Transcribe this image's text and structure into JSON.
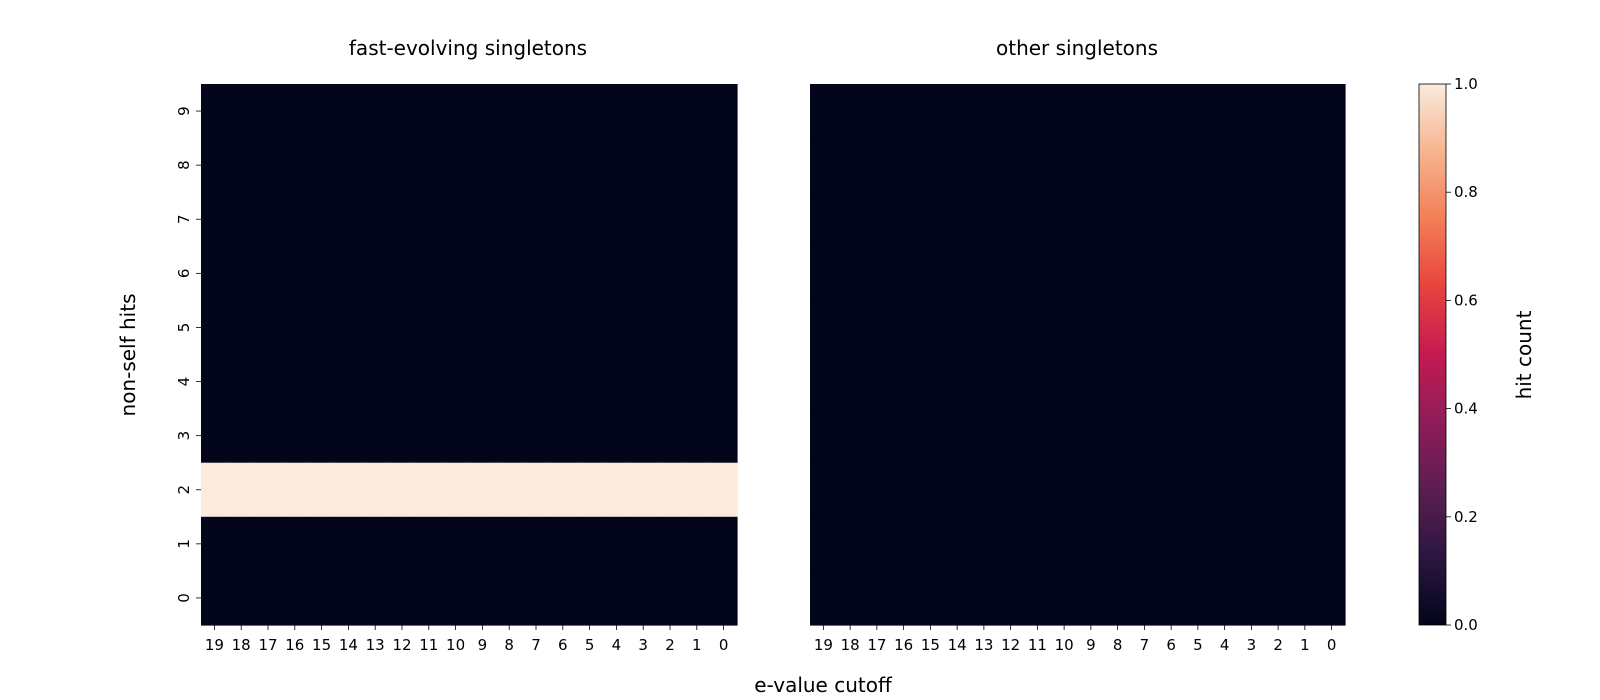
{
  "chart_data": {
    "type": "heatmap",
    "panels": [
      {
        "title": "fast-evolving singletons",
        "x_categories": [
          "19",
          "18",
          "17",
          "16",
          "15",
          "14",
          "13",
          "12",
          "11",
          "10",
          "9",
          "8",
          "7",
          "6",
          "5",
          "4",
          "3",
          "2",
          "1",
          "0"
        ],
        "y_categories": [
          "9",
          "8",
          "7",
          "6",
          "5",
          "4",
          "3",
          "2",
          "1",
          "0"
        ],
        "values": [
          [
            0,
            0,
            0,
            0,
            0,
            0,
            0,
            0,
            0,
            0,
            0,
            0,
            0,
            0,
            0,
            0,
            0,
            0,
            0,
            0
          ],
          [
            0,
            0,
            0,
            0,
            0,
            0,
            0,
            0,
            0,
            0,
            0,
            0,
            0,
            0,
            0,
            0,
            0,
            0,
            0,
            0
          ],
          [
            0,
            0,
            0,
            0,
            0,
            0,
            0,
            0,
            0,
            0,
            0,
            0,
            0,
            0,
            0,
            0,
            0,
            0,
            0,
            0
          ],
          [
            0,
            0,
            0,
            0,
            0,
            0,
            0,
            0,
            0,
            0,
            0,
            0,
            0,
            0,
            0,
            0,
            0,
            0,
            0,
            0
          ],
          [
            0,
            0,
            0,
            0,
            0,
            0,
            0,
            0,
            0,
            0,
            0,
            0,
            0,
            0,
            0,
            0,
            0,
            0,
            0,
            0
          ],
          [
            0,
            0,
            0,
            0,
            0,
            0,
            0,
            0,
            0,
            0,
            0,
            0,
            0,
            0,
            0,
            0,
            0,
            0,
            0,
            0
          ],
          [
            0,
            0,
            0,
            0,
            0,
            0,
            0,
            0,
            0,
            0,
            0,
            0,
            0,
            0,
            0,
            0,
            0,
            0,
            0,
            0
          ],
          [
            1,
            1,
            1,
            1,
            1,
            1,
            1,
            1,
            1,
            1,
            1,
            1,
            1,
            1,
            1,
            1,
            1,
            1,
            1,
            1
          ],
          [
            0,
            0,
            0,
            0,
            0,
            0,
            0,
            0,
            0,
            0,
            0,
            0,
            0,
            0,
            0,
            0,
            0,
            0,
            0,
            0
          ],
          [
            0,
            0,
            0,
            0,
            0,
            0,
            0,
            0,
            0,
            0,
            0,
            0,
            0,
            0,
            0,
            0,
            0,
            0,
            0,
            0
          ]
        ]
      },
      {
        "title": "other singletons",
        "x_categories": [
          "19",
          "18",
          "17",
          "16",
          "15",
          "14",
          "13",
          "12",
          "11",
          "10",
          "9",
          "8",
          "7",
          "6",
          "5",
          "4",
          "3",
          "2",
          "1",
          "0"
        ],
        "y_categories": [
          "9",
          "8",
          "7",
          "6",
          "5",
          "4",
          "3",
          "2",
          "1",
          "0"
        ],
        "values": [
          [
            0,
            0,
            0,
            0,
            0,
            0,
            0,
            0,
            0,
            0,
            0,
            0,
            0,
            0,
            0,
            0,
            0,
            0,
            0,
            0
          ],
          [
            0,
            0,
            0,
            0,
            0,
            0,
            0,
            0,
            0,
            0,
            0,
            0,
            0,
            0,
            0,
            0,
            0,
            0,
            0,
            0
          ],
          [
            0,
            0,
            0,
            0,
            0,
            0,
            0,
            0,
            0,
            0,
            0,
            0,
            0,
            0,
            0,
            0,
            0,
            0,
            0,
            0
          ],
          [
            0,
            0,
            0,
            0,
            0,
            0,
            0,
            0,
            0,
            0,
            0,
            0,
            0,
            0,
            0,
            0,
            0,
            0,
            0,
            0
          ],
          [
            0,
            0,
            0,
            0,
            0,
            0,
            0,
            0,
            0,
            0,
            0,
            0,
            0,
            0,
            0,
            0,
            0,
            0,
            0,
            0
          ],
          [
            0,
            0,
            0,
            0,
            0,
            0,
            0,
            0,
            0,
            0,
            0,
            0,
            0,
            0,
            0,
            0,
            0,
            0,
            0,
            0
          ],
          [
            0,
            0,
            0,
            0,
            0,
            0,
            0,
            0,
            0,
            0,
            0,
            0,
            0,
            0,
            0,
            0,
            0,
            0,
            0,
            0
          ],
          [
            0,
            0,
            0,
            0,
            0,
            0,
            0,
            0,
            0,
            0,
            0,
            0,
            0,
            0,
            0,
            0,
            0,
            0,
            0,
            0
          ],
          [
            0,
            0,
            0,
            0,
            0,
            0,
            0,
            0,
            0,
            0,
            0,
            0,
            0,
            0,
            0,
            0,
            0,
            0,
            0,
            0
          ],
          [
            0,
            0,
            0,
            0,
            0,
            0,
            0,
            0,
            0,
            0,
            0,
            0,
            0,
            0,
            0,
            0,
            0,
            0,
            0,
            0
          ]
        ]
      }
    ],
    "xlabel": "e-value cutoff",
    "ylabel": "non-self hits",
    "colorbar": {
      "label": "hit count",
      "range": [
        0.0,
        1.0
      ],
      "ticks": [
        "0.0",
        "0.2",
        "0.4",
        "0.6",
        "0.8",
        "1.0"
      ],
      "colormap": "rocket",
      "stops": [
        "#03051a",
        "#2b1641",
        "#5b1e51",
        "#8f1d5a",
        "#c41a50",
        "#e8433f",
        "#f47e56",
        "#f6b48f",
        "#faebdd"
      ]
    },
    "grid": false
  }
}
